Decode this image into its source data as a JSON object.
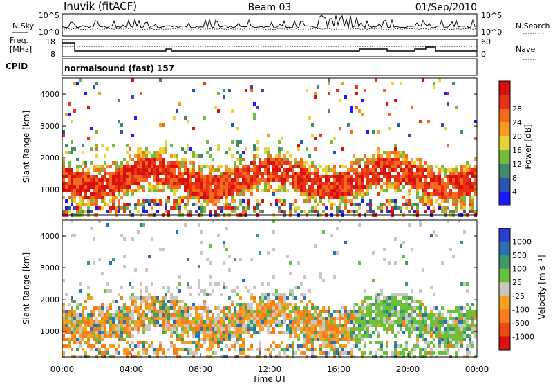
{
  "header": {
    "station": "Inuvik (fitACF)",
    "beam": "Beam 03",
    "date": "01/Sep/2010"
  },
  "noise_panel": {
    "left_label": "N.Sky",
    "right_label": "N.Search",
    "left_ticks": [
      "10^5",
      "10^0"
    ],
    "right_ticks": [
      "10^5",
      "10^0"
    ]
  },
  "freq_panel": {
    "left_label_1": "Freq.",
    "left_label_2": "[MHz]",
    "right_label": "Nave",
    "left_ticks": [
      "18",
      "8"
    ],
    "right_ticks": [
      "60",
      "0"
    ]
  },
  "cpid": {
    "label": "CPID",
    "value": "normalsound (fast) 157"
  },
  "chart_data": [
    {
      "type": "heatmap",
      "name": "power",
      "ylabel": "Slant Range [km]",
      "yticks": [
        "1000",
        "2000",
        "3000",
        "4000"
      ],
      "ylim": [
        200,
        4500
      ],
      "colorbar_label": "Power [dB]",
      "colorbar_ticks": [
        "4",
        "8",
        "12",
        "16",
        "20",
        "24",
        "28"
      ],
      "colorbar_colors": [
        "#1a1aff",
        "#2a55b0",
        "#3f8c6a",
        "#74bb3c",
        "#e6d43a",
        "#f59a22",
        "#f56a1a",
        "#e83216",
        "#d81010"
      ]
    },
    {
      "type": "heatmap",
      "name": "velocity",
      "ylabel": "Slant Range [km]",
      "yticks": [
        "1000",
        "2000",
        "3000",
        "4000"
      ],
      "ylim": [
        200,
        4500
      ],
      "colorbar_label": "Velocity [m s⁻¹]",
      "colorbar_ticks": [
        "1000",
        "500",
        "100",
        "25",
        "-25",
        "-100",
        "-500",
        "-1000"
      ],
      "colorbar_colors": [
        "#2a3fd0",
        "#2d6fb0",
        "#3c9a6a",
        "#6ac23a",
        "#c8c8c0",
        "#f5a020",
        "#f57d1a",
        "#ec4a16",
        "#e01010"
      ]
    }
  ],
  "time_axis": {
    "label": "Time UT",
    "ticks": [
      "00:00",
      "04:00",
      "08:00",
      "12:00",
      "16:00",
      "20:00",
      "00:00"
    ]
  }
}
